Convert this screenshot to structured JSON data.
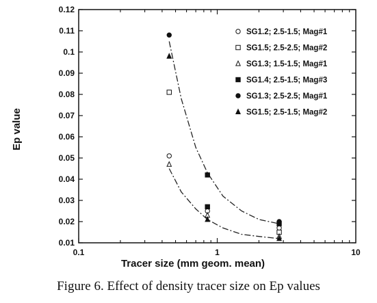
{
  "caption": "Figure 6.  Effect of density tracer size on Ep values",
  "chart_data": {
    "type": "scatter",
    "title": "",
    "xlabel": "Tracer size (mm geom. mean)",
    "ylabel": "Ep value",
    "xscale": "log",
    "xlim": [
      0.1,
      10
    ],
    "ylim": [
      0.01,
      0.12
    ],
    "x_ticks": [
      "0.1",
      "1",
      "10"
    ],
    "y_ticks": [
      "0.01",
      "0.02",
      "0.03",
      "0.04",
      "0.05",
      "0.06",
      "0.07",
      "0.08",
      "0.09",
      "0.1",
      "0.11",
      "0.12"
    ],
    "legend_position": "top-right",
    "series": [
      {
        "name": "SG1.2; 2.5-1.5; Mag#1",
        "marker": "open-circle",
        "x": [
          0.45,
          0.85,
          2.8
        ],
        "y": [
          0.051,
          0.025,
          0.017
        ]
      },
      {
        "name": "SG1.5; 2.5-2.5; Mag#2",
        "marker": "open-square",
        "x": [
          0.45,
          0.85,
          2.8
        ],
        "y": [
          0.081,
          0.042,
          0.015
        ]
      },
      {
        "name": "SG1.3; 1.5-1.5; Mag#1",
        "marker": "open-triangle",
        "x": [
          0.45,
          0.85,
          2.8
        ],
        "y": [
          0.047,
          0.023,
          0.013
        ]
      },
      {
        "name": "SG1.4; 2.5-1.5; Mag#3",
        "marker": "filled-square",
        "x": [
          0.85,
          2.8
        ],
        "y": [
          0.027,
          0.019
        ]
      },
      {
        "name": "SG1.3; 2.5-2.5; Mag#1",
        "marker": "filled-circle",
        "x": [
          0.45,
          0.85,
          2.8
        ],
        "y": [
          0.108,
          0.042,
          0.02
        ]
      },
      {
        "name": "SG1.5; 2.5-1.5; Mag#2",
        "marker": "filled-triangle",
        "x": [
          0.45,
          0.85,
          2.8
        ],
        "y": [
          0.098,
          0.021,
          0.012
        ]
      }
    ],
    "fit_curves": [
      {
        "style": "dash-dot",
        "x": [
          0.45,
          0.55,
          0.7,
          0.85,
          1.1,
          1.5,
          2.0,
          2.8
        ],
        "y": [
          0.105,
          0.078,
          0.055,
          0.043,
          0.032,
          0.025,
          0.021,
          0.019
        ]
      },
      {
        "style": "dash-dot",
        "x": [
          0.45,
          0.55,
          0.7,
          0.85,
          1.1,
          1.5,
          2.0,
          2.8
        ],
        "y": [
          0.045,
          0.034,
          0.026,
          0.021,
          0.017,
          0.014,
          0.013,
          0.012
        ]
      }
    ]
  }
}
